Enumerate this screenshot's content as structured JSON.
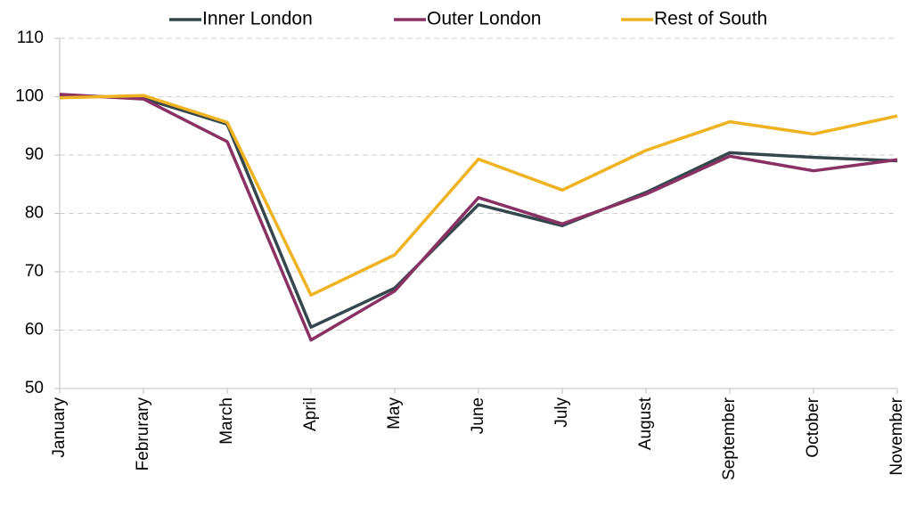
{
  "chart_data": {
    "type": "line",
    "categories": [
      "January",
      "Februrary",
      "March",
      "April",
      "May",
      "June",
      "July",
      "August",
      "September",
      "October",
      "November"
    ],
    "series": [
      {
        "name": "Inner London",
        "color": "#34474c",
        "values": [
          100.3,
          99.7,
          95.3,
          60.5,
          67.2,
          81.5,
          77.9,
          83.6,
          90.4,
          89.6,
          89.0
        ]
      },
      {
        "name": "Outer London",
        "color": "#8a3163",
        "values": [
          100.4,
          99.6,
          92.3,
          58.3,
          66.7,
          82.7,
          78.2,
          83.3,
          89.8,
          87.3,
          89.2
        ]
      },
      {
        "name": "Rest of South",
        "color": "#efb322",
        "values": [
          99.8,
          100.2,
          95.6,
          66.0,
          72.9,
          89.3,
          84.0,
          90.8,
          95.7,
          93.6,
          96.7
        ]
      }
    ],
    "ylim": [
      50,
      110
    ],
    "yticks": [
      50,
      60,
      70,
      80,
      90,
      100,
      110
    ],
    "grid": true,
    "legend": "top"
  }
}
